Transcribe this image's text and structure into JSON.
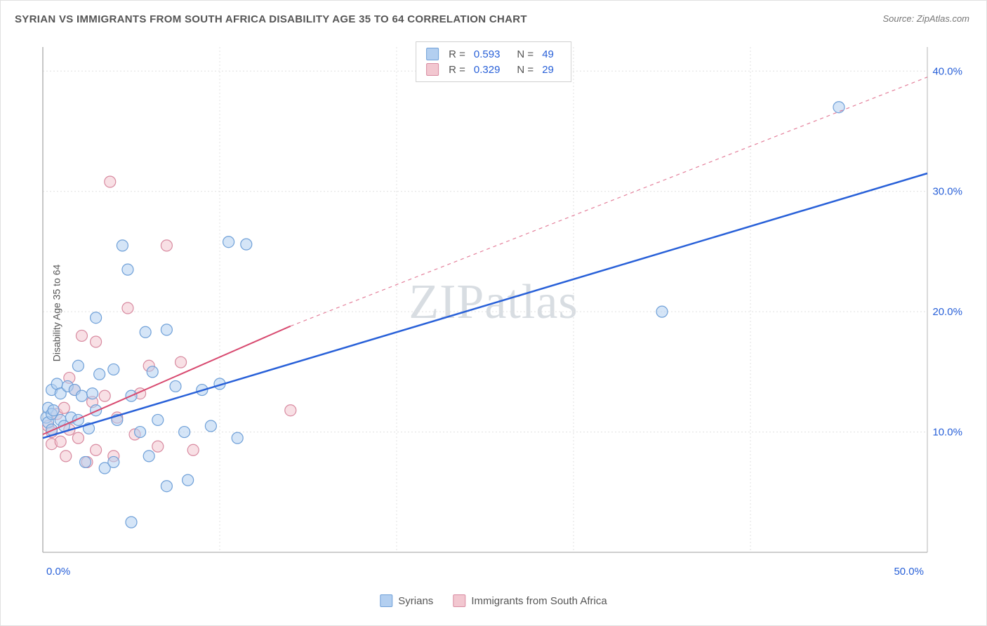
{
  "title": "SYRIAN VS IMMIGRANTS FROM SOUTH AFRICA DISABILITY AGE 35 TO 64 CORRELATION CHART",
  "source": "Source: ZipAtlas.com",
  "watermark": "ZIPatlas",
  "ylabel": "Disability Age 35 to 64",
  "chart": {
    "type": "scatter",
    "xlim": [
      0,
      50
    ],
    "ylim": [
      0,
      42
    ],
    "x_ticks": [
      0,
      50
    ],
    "x_tick_labels": [
      "0.0%",
      "50.0%"
    ],
    "y_ticks": [
      10,
      20,
      30,
      40
    ],
    "y_tick_labels": [
      "10.0%",
      "20.0%",
      "30.0%",
      "40.0%"
    ],
    "background_color": "#ffffff",
    "grid_color": "#e0e0e0",
    "grid_dash": "2,3",
    "axis_label_color": "#2860d8",
    "marker_radius": 8,
    "marker_opacity": 0.55,
    "series": [
      {
        "name": "Syrians",
        "color_fill": "#b3cff0",
        "color_stroke": "#6fa0d8",
        "r_value": "0.593",
        "n_value": "49",
        "trend_color": "#2860d8",
        "trend_width": 2.5,
        "trend_dash": "none",
        "trend_start": [
          0,
          9.5
        ],
        "trend_end": [
          50,
          31.5
        ],
        "points": [
          [
            0.2,
            11.2
          ],
          [
            0.3,
            10.8
          ],
          [
            0.3,
            12.0
          ],
          [
            0.5,
            11.5
          ],
          [
            0.5,
            13.5
          ],
          [
            0.5,
            10.2
          ],
          [
            0.6,
            11.8
          ],
          [
            0.8,
            14.0
          ],
          [
            1.0,
            13.2
          ],
          [
            1.0,
            11.0
          ],
          [
            1.2,
            10.5
          ],
          [
            1.4,
            13.8
          ],
          [
            1.6,
            11.2
          ],
          [
            1.8,
            13.5
          ],
          [
            2.0,
            11.0
          ],
          [
            2.0,
            15.5
          ],
          [
            2.2,
            13.0
          ],
          [
            2.4,
            7.5
          ],
          [
            2.6,
            10.3
          ],
          [
            2.8,
            13.2
          ],
          [
            3.0,
            11.8
          ],
          [
            3.0,
            19.5
          ],
          [
            3.2,
            14.8
          ],
          [
            3.5,
            7.0
          ],
          [
            4.0,
            15.2
          ],
          [
            4.0,
            7.5
          ],
          [
            4.2,
            11.0
          ],
          [
            4.5,
            25.5
          ],
          [
            4.8,
            23.5
          ],
          [
            5.0,
            13.0
          ],
          [
            5.5,
            10.0
          ],
          [
            5.8,
            18.3
          ],
          [
            6.0,
            8.0
          ],
          [
            6.2,
            15.0
          ],
          [
            6.5,
            11.0
          ],
          [
            7.0,
            5.5
          ],
          [
            7.0,
            18.5
          ],
          [
            7.5,
            13.8
          ],
          [
            8.0,
            10.0
          ],
          [
            8.2,
            6.0
          ],
          [
            9.0,
            13.5
          ],
          [
            9.5,
            10.5
          ],
          [
            10.0,
            14.0
          ],
          [
            10.5,
            25.8
          ],
          [
            11.0,
            9.5
          ],
          [
            11.5,
            25.6
          ],
          [
            5.0,
            2.5
          ],
          [
            35.0,
            20.0
          ],
          [
            45.0,
            37.0
          ]
        ]
      },
      {
        "name": "Immigrants from South Africa",
        "color_fill": "#f2c7d0",
        "color_stroke": "#d88aa0",
        "r_value": "0.329",
        "n_value": "29",
        "trend_color": "#d84a70",
        "trend_width": 2,
        "trend_dash": "none",
        "trend_dash_ext": "5,5",
        "trend_start": [
          0,
          9.8
        ],
        "trend_mid": [
          14,
          18.8
        ],
        "trend_end": [
          50,
          39.5
        ],
        "points": [
          [
            0.3,
            10.5
          ],
          [
            0.5,
            9.0
          ],
          [
            0.5,
            10.0
          ],
          [
            0.8,
            11.5
          ],
          [
            1.0,
            9.2
          ],
          [
            1.2,
            12.0
          ],
          [
            1.3,
            8.0
          ],
          [
            1.5,
            14.5
          ],
          [
            1.5,
            10.2
          ],
          [
            1.8,
            13.5
          ],
          [
            2.0,
            9.5
          ],
          [
            2.2,
            18.0
          ],
          [
            2.5,
            7.5
          ],
          [
            2.8,
            12.5
          ],
          [
            3.0,
            8.5
          ],
          [
            3.0,
            17.5
          ],
          [
            3.5,
            13.0
          ],
          [
            3.8,
            30.8
          ],
          [
            4.0,
            8.0
          ],
          [
            4.2,
            11.2
          ],
          [
            4.8,
            20.3
          ],
          [
            5.2,
            9.8
          ],
          [
            5.5,
            13.2
          ],
          [
            6.0,
            15.5
          ],
          [
            6.5,
            8.8
          ],
          [
            7.0,
            25.5
          ],
          [
            7.8,
            15.8
          ],
          [
            8.5,
            8.5
          ],
          [
            14.0,
            11.8
          ]
        ]
      }
    ],
    "legend_bottom": [
      {
        "label": "Syrians",
        "fill": "#b3cff0",
        "stroke": "#6fa0d8"
      },
      {
        "label": "Immigrants from South Africa",
        "fill": "#f2c7d0",
        "stroke": "#d88aa0"
      }
    ]
  }
}
